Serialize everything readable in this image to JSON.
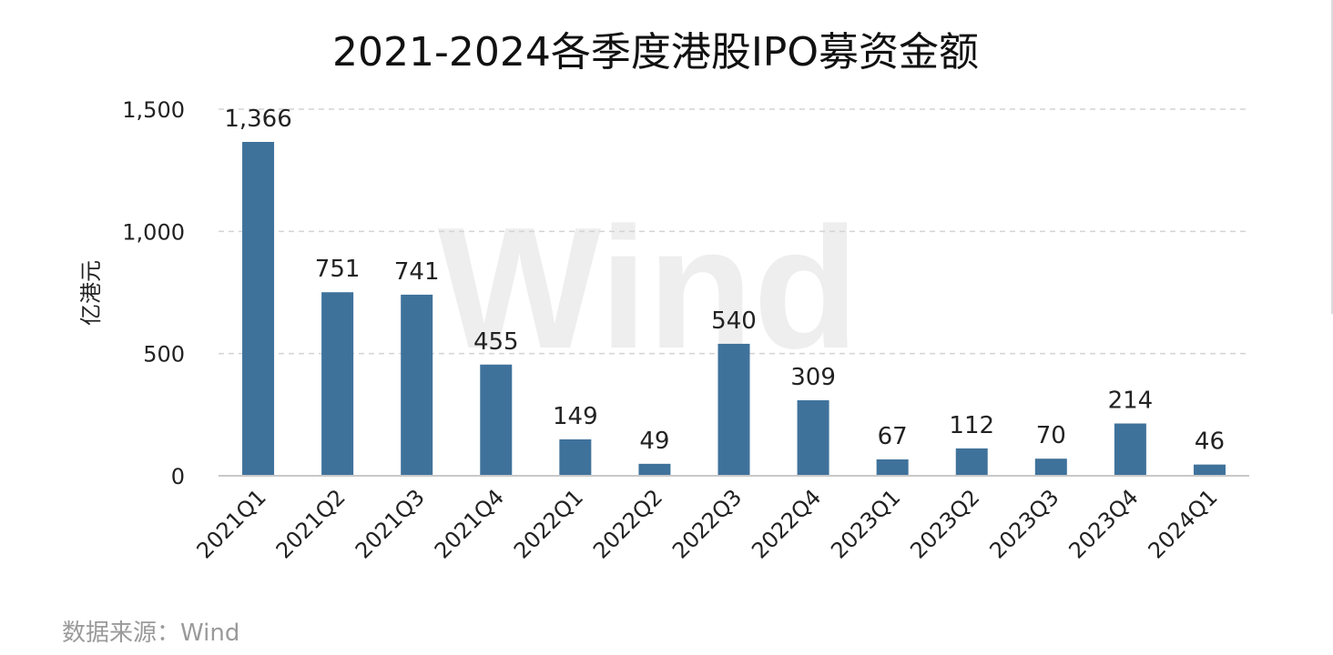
{
  "chart_data": {
    "type": "bar",
    "title": "2021-2024各季度港股IPO募资金额",
    "ylabel": "亿港元",
    "xlabel": "",
    "categories": [
      "2021Q1",
      "2021Q2",
      "2021Q3",
      "2021Q4",
      "2022Q1",
      "2022Q2",
      "2022Q3",
      "2022Q4",
      "2023Q1",
      "2023Q2",
      "2023Q3",
      "2023Q4",
      "2024Q1"
    ],
    "values": [
      1366,
      751,
      741,
      455,
      149,
      49,
      540,
      309,
      67,
      112,
      70,
      214,
      46
    ],
    "value_labels": [
      "1,366",
      "751",
      "741",
      "455",
      "149",
      "49",
      "540",
      "309",
      "67",
      "112",
      "70",
      "214",
      "46"
    ],
    "ylim": [
      0,
      1500
    ],
    "yticks": [
      0,
      500,
      1000,
      1500
    ],
    "ytick_labels": [
      "0",
      "500",
      "1,000",
      "1,500"
    ],
    "grid": true,
    "bar_color": "#3f729b",
    "source": "数据来源：Wind",
    "watermark": "Wind"
  }
}
